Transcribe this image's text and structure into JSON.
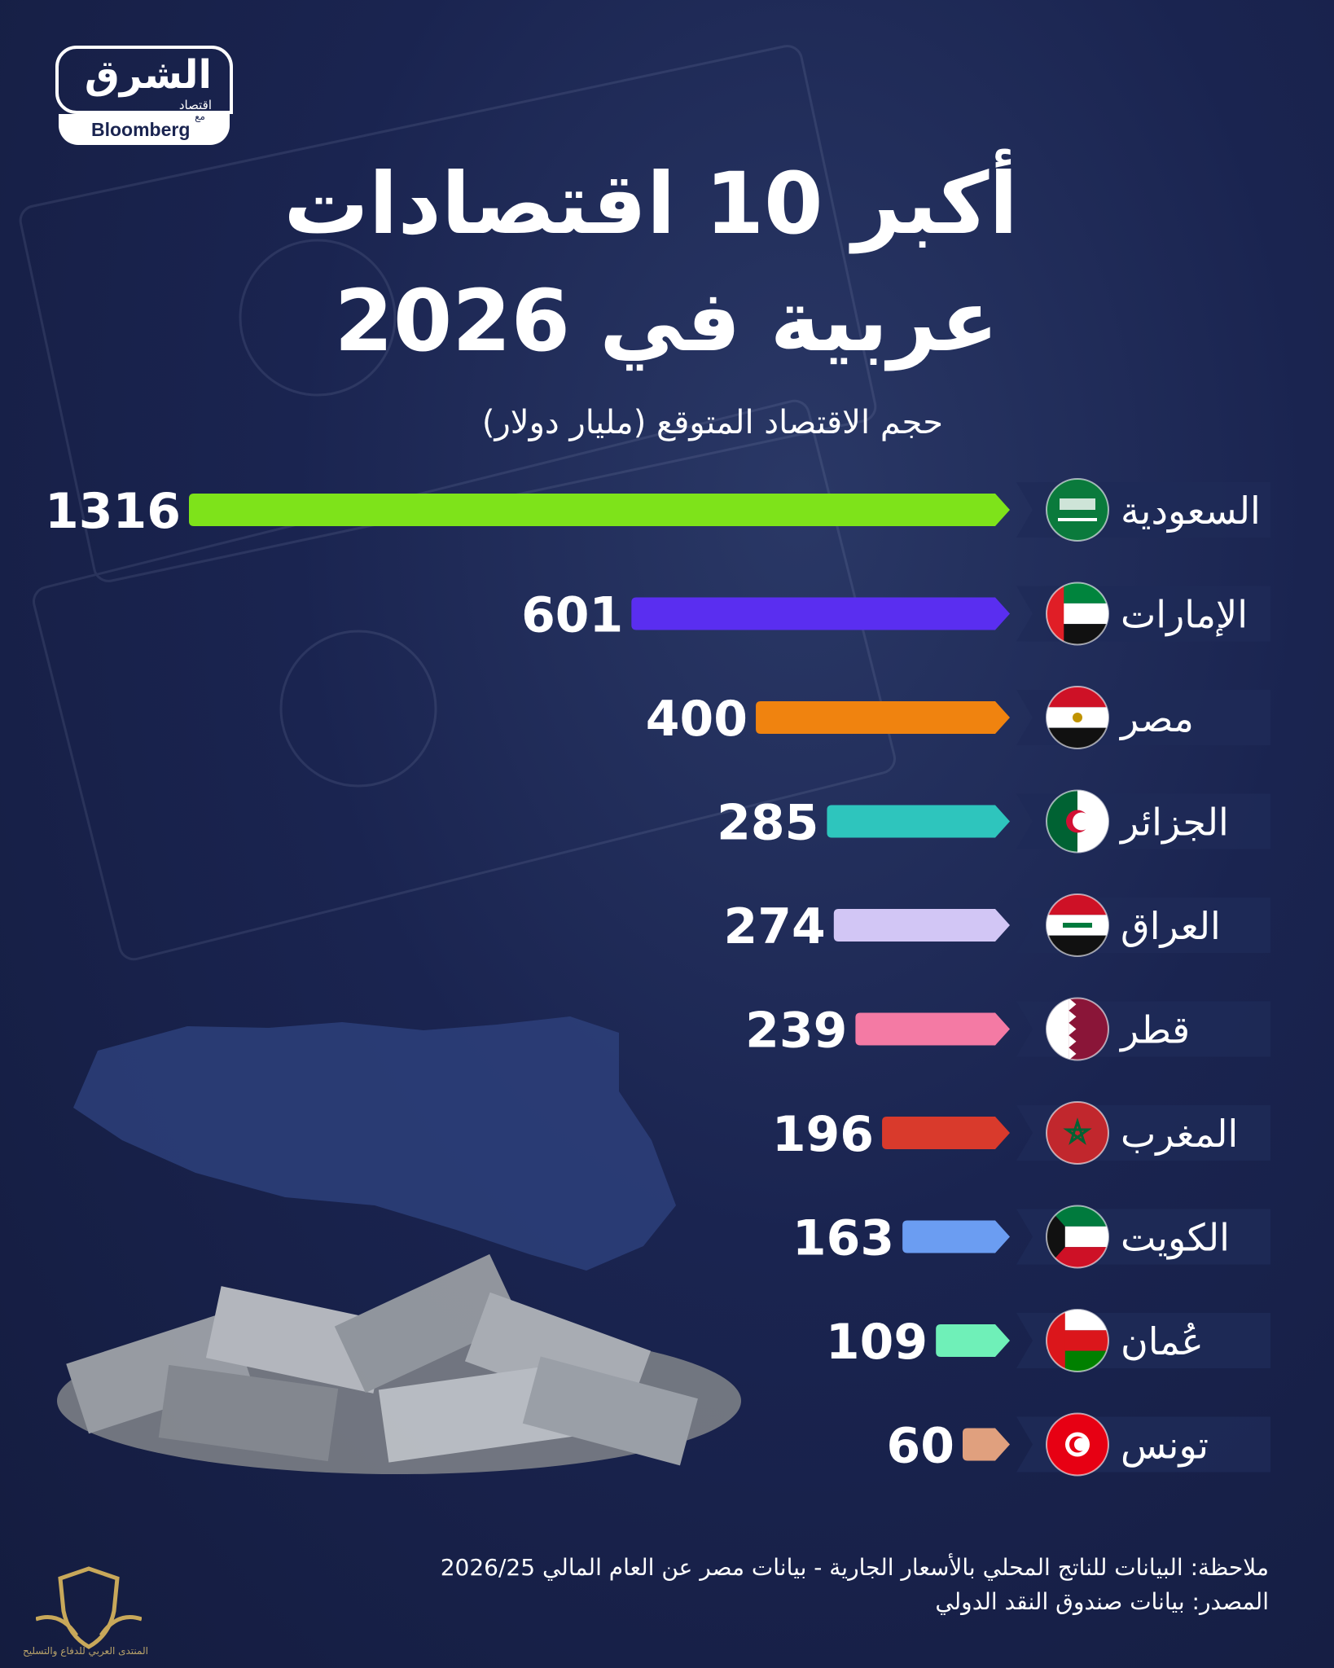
{
  "logo": {
    "main": "الشرق",
    "sub": "اقتصاد",
    "with": "مع",
    "partner": "Bloomberg"
  },
  "title_line1": "أكبر 10 اقتصادات",
  "title_line2": "عربية في 2026",
  "subtitle": "حجم الاقتصاد المتوقع (مليار دولار)",
  "chart_data": {
    "type": "bar",
    "orientation": "horizontal",
    "title": "أكبر 10 اقتصادات عربية في 2026",
    "subtitle": "حجم الاقتصاد المتوقع (مليار دولار)",
    "categories": [
      "السعودية",
      "الإمارات",
      "مصر",
      "الجزائر",
      "العراق",
      "قطر",
      "المغرب",
      "الكويت",
      "عُمان",
      "تونس"
    ],
    "values": [
      1316,
      601,
      400,
      285,
      274,
      239,
      196,
      163,
      109,
      60
    ],
    "value_labels": [
      "1316",
      "601",
      "400",
      "285",
      "274",
      "239",
      "196",
      "163",
      "109",
      "60"
    ],
    "bar_colors": [
      "#7ee31a",
      "#5a2ef0",
      "#f0830f",
      "#2ec5bd",
      "#d2c6f5",
      "#f47aa4",
      "#d93a2c",
      "#6b9df2",
      "#6ff0b8",
      "#e0a07e"
    ],
    "flags": [
      "saudi-flag-icon",
      "uae-flag-icon",
      "egypt-flag-icon",
      "algeria-flag-icon",
      "iraq-flag-icon",
      "qatar-flag-icon",
      "morocco-flag-icon",
      "kuwait-flag-icon",
      "oman-flag-icon",
      "tunisia-flag-icon"
    ],
    "xlim": [
      0,
      1316
    ],
    "grid": false,
    "legend": "none"
  },
  "note_line1": "ملاحظة: البيانات للناتج المحلي بالأسعار الجارية - بيانات مصر عن العام المالي 2026/25",
  "note_line2": "المصدر: بيانات صندوق النقد الدولي",
  "watermark_text": "المنتدى العربي للدفاع والتسليح"
}
